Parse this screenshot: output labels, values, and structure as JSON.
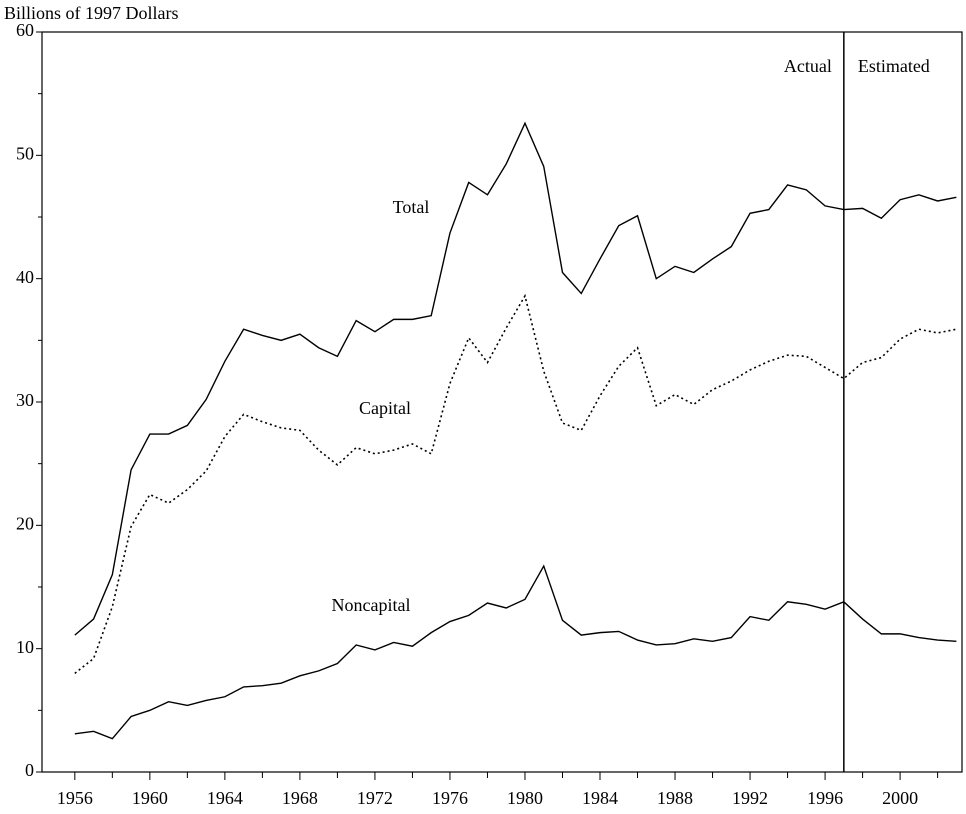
{
  "chart_data": {
    "type": "line",
    "y_label": "Billions of 1997 Dollars",
    "x": [
      1956,
      1957,
      1958,
      1959,
      1960,
      1961,
      1962,
      1963,
      1964,
      1965,
      1966,
      1967,
      1968,
      1969,
      1970,
      1971,
      1972,
      1973,
      1974,
      1975,
      1976,
      1977,
      1978,
      1979,
      1980,
      1981,
      1982,
      1983,
      1984,
      1985,
      1986,
      1987,
      1988,
      1989,
      1990,
      1991,
      1992,
      1993,
      1994,
      1995,
      1996,
      1997,
      1998,
      1999,
      2000,
      2001,
      2002,
      2003
    ],
    "series": [
      {
        "name": "Total",
        "color": "#000000",
        "dash": "solid",
        "values": [
          11.1,
          12.4,
          16.0,
          24.5,
          27.4,
          27.4,
          28.1,
          30.2,
          33.3,
          35.9,
          35.4,
          35.0,
          35.5,
          34.4,
          33.7,
          36.6,
          35.7,
          36.7,
          36.7,
          37.0,
          43.7,
          47.8,
          46.8,
          49.3,
          52.6,
          49.1,
          40.5,
          38.8,
          41.6,
          44.3,
          45.1,
          40.0,
          41.0,
          40.5,
          41.6,
          42.6,
          45.3,
          45.6,
          47.6,
          47.2,
          45.9,
          45.6,
          45.7,
          44.9,
          46.4,
          46.8,
          46.3,
          46.6
        ]
      },
      {
        "name": "Capital",
        "color": "#000000",
        "dash": "dotted",
        "values": [
          8.0,
          9.2,
          13.4,
          19.9,
          22.5,
          21.8,
          22.9,
          24.4,
          27.2,
          29.0,
          28.4,
          27.9,
          27.7,
          26.1,
          24.9,
          26.3,
          25.8,
          26.1,
          26.6,
          25.8,
          31.5,
          35.2,
          33.2,
          36.0,
          38.6,
          32.5,
          28.3,
          27.7,
          30.5,
          32.9,
          34.4,
          29.7,
          30.6,
          29.8,
          31.0,
          31.7,
          32.6,
          33.3,
          33.8,
          33.7,
          32.8,
          31.9,
          33.2,
          33.6,
          35.1,
          35.9,
          35.6,
          35.9
        ]
      },
      {
        "name": "Noncapital",
        "color": "#000000",
        "dash": "solid",
        "values": [
          3.1,
          3.3,
          2.7,
          4.5,
          5.0,
          5.7,
          5.4,
          5.8,
          6.1,
          6.9,
          7.0,
          7.2,
          7.8,
          8.2,
          8.8,
          10.3,
          9.9,
          10.5,
          10.2,
          11.3,
          12.2,
          12.7,
          13.7,
          13.3,
          14.0,
          16.7,
          12.3,
          11.1,
          11.3,
          11.4,
          10.7,
          10.3,
          10.4,
          10.8,
          10.6,
          10.9,
          12.6,
          12.3,
          13.8,
          13.6,
          13.2,
          13.8,
          12.4,
          11.2,
          11.2,
          10.9,
          10.7,
          10.6
        ]
      }
    ],
    "divider": {
      "x": 1997,
      "left_label": "Actual",
      "right_label": "Estimated"
    },
    "xlim": [
      1954.25,
      2003.3
    ],
    "xticks": [
      1956,
      1960,
      1964,
      1968,
      1972,
      1976,
      1980,
      1984,
      1988,
      1992,
      1996,
      2000
    ],
    "xminor_ticks": [
      1958,
      1962,
      1966,
      1970,
      1974,
      1978,
      1982,
      1986,
      1990,
      1994,
      1998,
      2002
    ],
    "ylim": [
      0,
      60
    ],
    "yticks": [
      0,
      10,
      20,
      30,
      40,
      50,
      60
    ],
    "yminor_ticks": [
      5,
      15,
      25,
      35,
      45,
      55
    ],
    "grid": false
  }
}
